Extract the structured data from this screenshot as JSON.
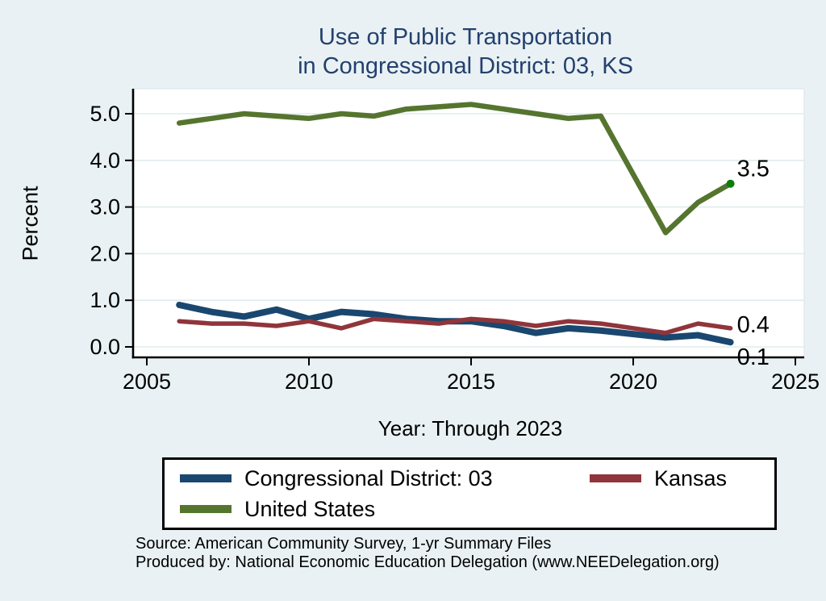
{
  "page": {
    "background": "#e9f1f4"
  },
  "title": {
    "line1": "Use of Public Transportation",
    "line2": "in Congressional District: 03, KS",
    "color": "#24406e"
  },
  "chart_data": {
    "type": "line",
    "title": "Use of Public Transportation in Congressional District: 03, KS",
    "xlabel": "Year: Through 2023",
    "ylabel": "Percent",
    "x_ticks": [
      2005,
      2010,
      2015,
      2020,
      2025
    ],
    "y_ticks": [
      "0.0",
      "1.0",
      "2.0",
      "3.0",
      "4.0",
      "5.0"
    ],
    "xlim": [
      2004.6,
      2025.3
    ],
    "ylim": [
      0,
      5.45
    ],
    "grid": true,
    "grid_color": "#e0ebee",
    "plot_background": "#ffffff",
    "axis_color": "#000000",
    "legend_position": "bottom",
    "note": "No data point for 2020; lines connect 2019 directly to 2021",
    "series": [
      {
        "name": "Congressional District: 03",
        "color": "#1a476f",
        "width": 8,
        "end_label": "0.1",
        "points": [
          [
            2006,
            0.9
          ],
          [
            2007,
            0.75
          ],
          [
            2008,
            0.65
          ],
          [
            2009,
            0.8
          ],
          [
            2010,
            0.6
          ],
          [
            2011,
            0.75
          ],
          [
            2012,
            0.7
          ],
          [
            2013,
            0.6
          ],
          [
            2014,
            0.55
          ],
          [
            2015,
            0.55
          ],
          [
            2016,
            0.45
          ],
          [
            2017,
            0.3
          ],
          [
            2018,
            0.4
          ],
          [
            2019,
            0.35
          ],
          [
            2021,
            0.2
          ],
          [
            2022,
            0.25
          ],
          [
            2023,
            0.1
          ]
        ]
      },
      {
        "name": "Kansas",
        "color": "#90353b",
        "width": 5.5,
        "end_label": "0.4",
        "points": [
          [
            2006,
            0.55
          ],
          [
            2007,
            0.5
          ],
          [
            2008,
            0.5
          ],
          [
            2009,
            0.45
          ],
          [
            2010,
            0.55
          ],
          [
            2011,
            0.4
          ],
          [
            2012,
            0.6
          ],
          [
            2013,
            0.55
          ],
          [
            2014,
            0.5
          ],
          [
            2015,
            0.6
          ],
          [
            2016,
            0.55
          ],
          [
            2017,
            0.45
          ],
          [
            2018,
            0.55
          ],
          [
            2019,
            0.5
          ],
          [
            2021,
            0.3
          ],
          [
            2022,
            0.5
          ],
          [
            2023,
            0.4
          ]
        ]
      },
      {
        "name": "United States",
        "color": "#55752f",
        "width": 6.5,
        "end_label": "3.5",
        "end_marker_color": "#0b7d0b",
        "points": [
          [
            2006,
            4.8
          ],
          [
            2007,
            4.9
          ],
          [
            2008,
            5.0
          ],
          [
            2009,
            4.95
          ],
          [
            2010,
            4.9
          ],
          [
            2011,
            5.0
          ],
          [
            2012,
            4.95
          ],
          [
            2013,
            5.1
          ],
          [
            2014,
            5.15
          ],
          [
            2015,
            5.2
          ],
          [
            2016,
            5.1
          ],
          [
            2017,
            5.0
          ],
          [
            2018,
            4.9
          ],
          [
            2019,
            4.95
          ],
          [
            2021,
            2.45
          ],
          [
            2022,
            3.1
          ],
          [
            2023,
            3.5
          ]
        ]
      }
    ]
  },
  "legend": {
    "items": [
      {
        "label": "Congressional District: 03"
      },
      {
        "label": "Kansas"
      },
      {
        "label": "United States"
      }
    ]
  },
  "footer": {
    "line1": "Source: American Community Survey, 1-yr Summary Files",
    "line2": "Produced by: National Economic Education Delegation (www.NEEDelegation.org)"
  }
}
